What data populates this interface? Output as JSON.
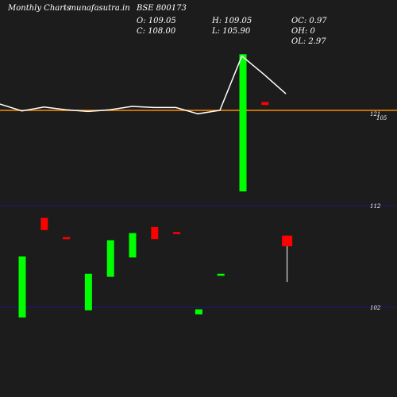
{
  "header": {
    "brand": "Monthly Charts",
    "site": "- munafasutra.in",
    "symbol": "BSE 800173",
    "open": "O: 109.05",
    "close": "C: 108.00",
    "high": "H: 109.05",
    "low": "L: 105.90",
    "oc": "OC: 0.97",
    "oh": "OH: 0",
    "ol": "OL: 2.97"
  },
  "chart_data": {
    "type": "candlestick",
    "price_ticks": [
      "121",
      "105",
      "112",
      "102"
    ],
    "reference_line": {
      "value": 121,
      "color": "#ff8c00"
    },
    "candles": [
      {
        "open": 101.0,
        "close": 107.0,
        "high": 107.0,
        "low": 101.0
      },
      {
        "open": 110.8,
        "close": 109.6,
        "high": 110.8,
        "low": 109.6
      },
      {
        "open": 108.9,
        "close": 108.7,
        "high": 108.9,
        "low": 108.7
      },
      {
        "open": 101.7,
        "close": 105.3,
        "high": 105.3,
        "low": 101.7
      },
      {
        "open": 105.0,
        "close": 108.6,
        "high": 108.6,
        "low": 105.0
      },
      {
        "open": 106.9,
        "close": 109.3,
        "high": 109.3,
        "low": 106.9
      },
      {
        "open": 109.9,
        "close": 108.7,
        "high": 109.9,
        "low": 108.7
      },
      {
        "open": 109.4,
        "close": 109.2,
        "high": 109.4,
        "low": 109.2
      },
      {
        "open": 101.3,
        "close": 101.8,
        "high": 101.8,
        "low": 101.3
      },
      {
        "open": 105.1,
        "close": 105.3,
        "high": 105.3,
        "low": 105.1
      },
      {
        "open": 113.4,
        "close": 126.9,
        "high": 126.9,
        "low": 113.4
      },
      {
        "open": 122.2,
        "close": 121.9,
        "high": 122.2,
        "low": 121.9
      },
      {
        "open": 109.05,
        "close": 108.0,
        "high": 109.05,
        "low": 105.9
      }
    ],
    "line_series": [
      128.0,
      126.8,
      127.5,
      127.0,
      126.7,
      127.0,
      127.6,
      127.4,
      127.4,
      126.3,
      126.9,
      136.4,
      133.2,
      129.8
    ],
    "line_color": "#ffffff",
    "up_color": "#00ff00",
    "down_color": "#ff0000",
    "grid": false
  }
}
